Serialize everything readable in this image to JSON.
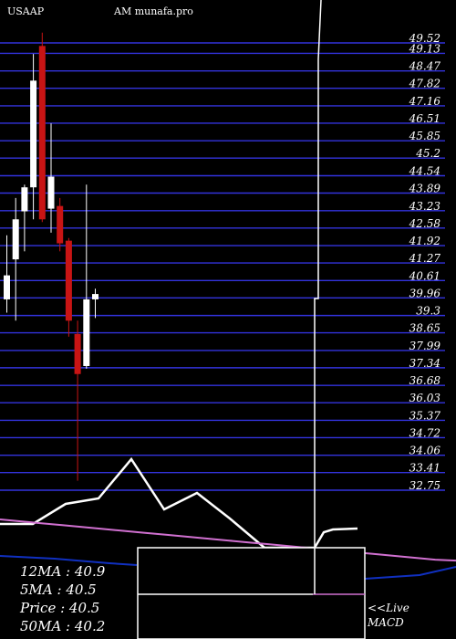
{
  "header": {
    "symbol": "USAAP",
    "site": "AM munafa.pro"
  },
  "chart_data": {
    "type": "candlestick",
    "y_ticks": [
      49.52,
      49.13,
      48.47,
      47.82,
      47.16,
      46.51,
      45.85,
      45.2,
      44.54,
      43.89,
      43.23,
      42.58,
      41.92,
      41.27,
      40.61,
      39.96,
      39.3,
      38.65,
      37.99,
      37.34,
      36.68,
      36.03,
      35.37,
      34.72,
      34.06,
      33.41,
      32.75
    ],
    "y_tick_labels": [
      "49.52",
      "49.13",
      "48.47",
      "47.82",
      "47.16",
      "46.51",
      "45.85",
      "45.2",
      "44.54",
      "43.89",
      "43.23",
      "42.58",
      "41.92",
      "41.27",
      "40.61",
      "39.96",
      "39.3",
      "38.65",
      "37.99",
      "37.34",
      "36.68",
      "36.03",
      "35.37",
      "34.72",
      "34.06",
      "33.41",
      "32.75"
    ],
    "candles": [
      {
        "open": 39.7,
        "high": 42.1,
        "low": 39.2,
        "close": 40.6,
        "color": "white"
      },
      {
        "open": 41.2,
        "high": 43.5,
        "low": 38.9,
        "close": 42.7,
        "color": "white"
      },
      {
        "open": 43.0,
        "high": 44.0,
        "low": 41.5,
        "close": 43.9,
        "color": "white"
      },
      {
        "open": 43.9,
        "high": 48.9,
        "low": 42.7,
        "close": 47.9,
        "color": "white"
      },
      {
        "open": 49.2,
        "high": 49.7,
        "low": 42.6,
        "close": 42.7,
        "color": "red"
      },
      {
        "open": 43.1,
        "high": 46.3,
        "low": 42.2,
        "close": 44.3,
        "color": "white"
      },
      {
        "open": 43.2,
        "high": 43.5,
        "low": 41.5,
        "close": 41.8,
        "color": "red"
      },
      {
        "open": 41.9,
        "high": 42.0,
        "low": 38.3,
        "close": 38.9,
        "color": "red"
      },
      {
        "open": 38.4,
        "high": 38.9,
        "low": 32.9,
        "close": 36.9,
        "color": "red"
      },
      {
        "open": 37.2,
        "high": 44.0,
        "low": 37.1,
        "close": 39.7,
        "color": "white"
      },
      {
        "open": 39.7,
        "high": 40.1,
        "low": 39.0,
        "close": 39.9,
        "color": "white"
      }
    ],
    "indicator_lines": [
      {
        "name": "",
        "color": "#ffffff",
        "values": [
          26,
          26,
          26,
          26,
          26,
          23,
          20,
          19,
          18,
          14,
          5,
          14,
          21,
          18,
          15,
          19,
          24,
          29,
          31,
          31,
          27,
          27,
          27
        ]
      },
      {
        "name": "",
        "color": "#d070d0",
        "values": [
          3.0,
          2.8,
          2.6,
          2.4,
          2.2,
          2.0,
          1.8,
          1.6,
          1.4,
          1.2,
          1.0,
          0.8,
          0.6,
          0.4,
          0.2,
          0.0,
          -0.2,
          -0.4,
          -0.6,
          -0.8,
          -1.0,
          -1.2,
          -1.3
        ]
      },
      {
        "name": "",
        "color": "#1030c0",
        "values": [
          -1.5,
          -2.0,
          -2.5,
          -3.0,
          -3.5,
          -4.0,
          -4.0,
          -4.0
        ]
      },
      {
        "name": "",
        "color": "#1030c0",
        "values": [
          -15,
          -14,
          -13,
          -12,
          -10
        ]
      }
    ]
  },
  "moving_averages": {
    "ma12": "12MA : 40.9",
    "ma5": "5MA : 40.5",
    "price": "Price   : 40.5",
    "ma50": "50MA : 40.2"
  },
  "live_label": "<<Live",
  "macd_label": "MACD"
}
